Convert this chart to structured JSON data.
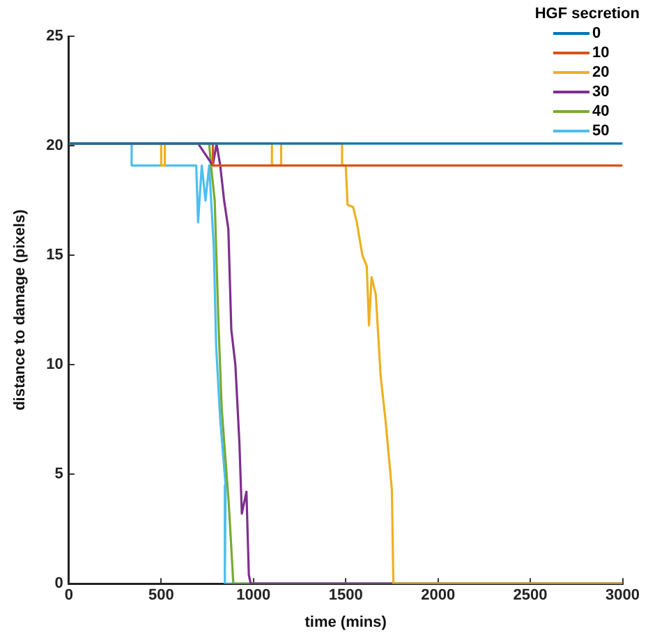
{
  "chart_data": {
    "type": "line",
    "xlabel": "time (mins)",
    "ylabel": "distance to damage (pixels)",
    "legend_title": "HGF secretion",
    "legend": "top right",
    "grid": false,
    "marker": "none",
    "line_style": "solid",
    "xlim": [
      0,
      3000
    ],
    "xticks": [
      0,
      500,
      1000,
      1500,
      2000,
      2500,
      3000
    ],
    "ylim": [
      0,
      25
    ],
    "yticks": [
      0,
      5,
      10,
      15,
      20,
      25
    ],
    "series": [
      {
        "name": "0",
        "color": "#0072bd",
        "x": [
          0,
          3000
        ],
        "values": [
          20.1,
          20.1
        ]
      },
      {
        "name": "10",
        "color": "#d95319",
        "x": [
          0,
          780,
          780,
          3000
        ],
        "values": [
          20.1,
          20.1,
          19.1,
          19.1
        ]
      },
      {
        "name": "20",
        "color": "#edb120",
        "x": [
          0,
          500,
          500,
          520,
          520,
          1100,
          1100,
          1150,
          1150,
          1480,
          1480,
          1500,
          1510,
          1540,
          1560,
          1590,
          1614,
          1626,
          1640,
          1663,
          1689,
          1715,
          1750,
          1758,
          1760,
          3000
        ],
        "values": [
          20.1,
          20.1,
          19.1,
          19.1,
          20.1,
          20.1,
          19.1,
          19.1,
          20.1,
          20.1,
          19.1,
          19.1,
          17.3,
          17.2,
          16.5,
          15,
          14.5,
          11.8,
          14,
          13.2,
          9.5,
          7.5,
          4.3,
          0,
          0,
          0
        ]
      },
      {
        "name": "30",
        "color": "#7e2f8e",
        "x": [
          0,
          700,
          700,
          780,
          800,
          820,
          841,
          864,
          880,
          902,
          924,
          937,
          962,
          975,
          985,
          3000
        ],
        "values": [
          20.1,
          20.1,
          20.1,
          19.1,
          20.1,
          19.1,
          17.5,
          16.2,
          11.6,
          10,
          6.4,
          3.2,
          4.2,
          0.4,
          0,
          0
        ]
      },
      {
        "name": "40",
        "color": "#77ac30",
        "x": [
          760,
          770,
          790,
          810,
          828,
          850,
          866,
          891,
          3000
        ],
        "values": [
          20.1,
          19.1,
          17.5,
          12,
          8,
          5.5,
          3.7,
          0,
          0
        ]
      },
      {
        "name": "50",
        "color": "#4dbeee",
        "x": [
          0,
          340,
          340,
          690,
          700,
          720,
          740,
          760,
          785,
          798,
          820,
          849,
          845,
          3000
        ],
        "values": [
          20.1,
          20.1,
          19.1,
          19.1,
          16.5,
          19.1,
          17.5,
          19.1,
          15.4,
          10.8,
          7.5,
          4.5,
          0,
          0
        ]
      }
    ]
  }
}
